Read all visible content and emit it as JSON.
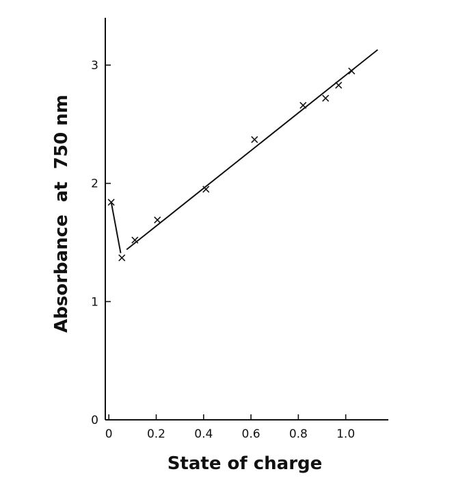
{
  "chart_data": {
    "type": "scatter",
    "title": "",
    "xlabel": "State of charge",
    "ylabel": "Absorbance  at  750 nm",
    "xlim": [
      -0.015,
      1.18
    ],
    "ylim": [
      0,
      3.4
    ],
    "x_ticks": [
      {
        "value": 0,
        "label": "0"
      },
      {
        "value": 0.2,
        "label": "0.2"
      },
      {
        "value": 0.4,
        "label": "0.4"
      },
      {
        "value": 0.6,
        "label": "0.6"
      },
      {
        "value": 0.8,
        "label": "0.8"
      },
      {
        "value": 1.0,
        "label": "1.0"
      }
    ],
    "y_ticks": [
      {
        "value": 0,
        "label": "0"
      },
      {
        "value": 1,
        "label": "1"
      },
      {
        "value": 2,
        "label": "2"
      },
      {
        "value": 3,
        "label": "3"
      }
    ],
    "grid": false,
    "legend": "none",
    "marker": "x",
    "series": [
      {
        "points": [
          {
            "x": 0.01,
            "y": 1.84
          },
          {
            "x": 0.055,
            "y": 1.37
          },
          {
            "x": 0.11,
            "y": 1.52
          },
          {
            "x": 0.205,
            "y": 1.69
          },
          {
            "x": 0.41,
            "y": 1.95
          },
          {
            "x": 0.615,
            "y": 2.37
          },
          {
            "x": 0.82,
            "y": 2.66
          },
          {
            "x": 0.915,
            "y": 2.72
          },
          {
            "x": 0.97,
            "y": 2.83
          },
          {
            "x": 1.025,
            "y": 2.95
          }
        ]
      }
    ],
    "fit_lines": [
      {
        "x": [
          0.01,
          0.05
        ],
        "y": [
          1.84,
          1.41
        ]
      },
      {
        "x": [
          0.075,
          1.135
        ],
        "y": [
          1.44,
          3.13
        ]
      }
    ]
  }
}
